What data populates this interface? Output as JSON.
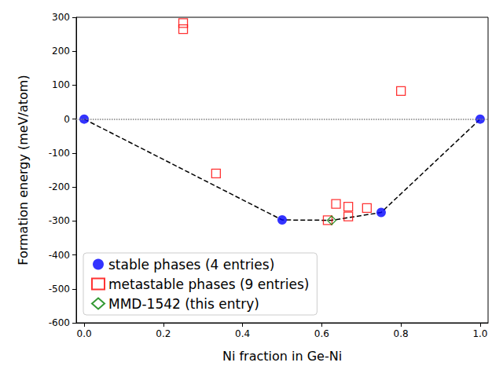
{
  "chart_data": {
    "type": "scatter",
    "x_label": "Ni fraction in Ge-Ni",
    "y_label": "Formation energy (meV/atom)",
    "xlim": [
      -0.02,
      1.02
    ],
    "xticks": [
      {
        "value": 0,
        "label": "0.0"
      },
      0.2,
      0.4,
      0.6,
      0.8,
      {
        "value": 1,
        "label": "1.0"
      }
    ],
    "ylim": [
      -600,
      300
    ],
    "yticks": [
      -600,
      -500,
      -400,
      -300,
      -200,
      -100,
      0,
      100,
      200,
      300
    ],
    "grid": false,
    "legend": "lower left",
    "series": [
      {
        "name": "stable phases (4 entries)",
        "color": "#0000ff",
        "marker": "circle_filled",
        "x": [
          0,
          0.5,
          0.75,
          1
        ],
        "values": [
          0,
          -297,
          -275,
          0
        ]
      },
      {
        "name": "metastable phases (9 entries)",
        "color": "#ff0000",
        "marker": "square_open",
        "x": [
          0.25,
          0.25,
          0.333,
          0.615,
          0.636,
          0.667,
          0.667,
          0.714,
          0.8
        ],
        "values": [
          283,
          265,
          -160,
          -298,
          -250,
          -258,
          -287,
          -262,
          83
        ]
      },
      {
        "name": "MMD-1542 (this entry)",
        "color": "#008000",
        "marker": "diamond_open",
        "x": [
          0.625
        ],
        "values": [
          -298
        ]
      }
    ],
    "hull": {
      "x": [
        0,
        0.5,
        0.625,
        0.75,
        1
      ],
      "values": [
        0,
        -297,
        -298,
        -275,
        0
      ],
      "color": "#000000",
      "line_style": "dashed"
    },
    "hline": {
      "value": 0,
      "color": "#808080",
      "line_style": "dotted"
    }
  }
}
